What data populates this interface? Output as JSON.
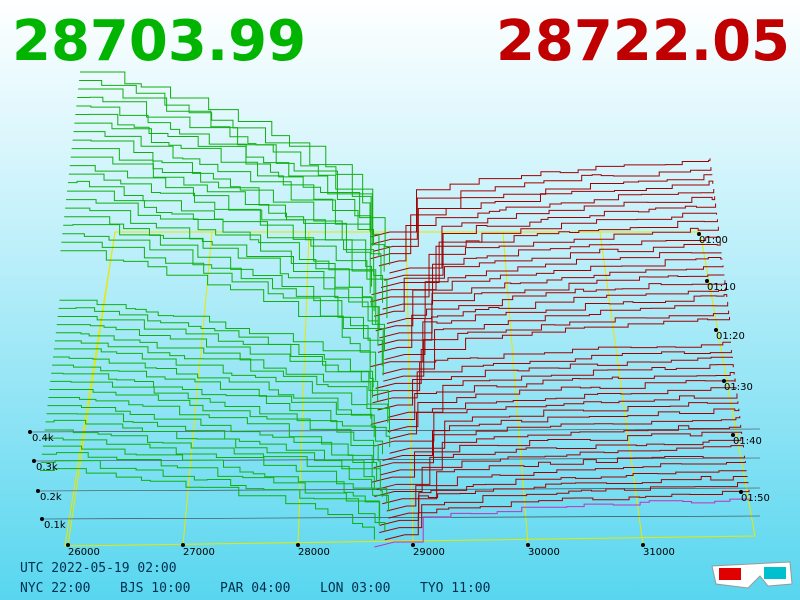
{
  "bid_price": "28703.99",
  "ask_price": "28722.05",
  "price_axis": [
    "26000",
    "27000",
    "28000",
    "29000",
    "30000",
    "31000"
  ],
  "time_axis": [
    "01:00",
    "01:10",
    "01:20",
    "01:30",
    "01:40",
    "01:50"
  ],
  "depth_axis": [
    "0.4k",
    "0.3k",
    "0.2k",
    "0.1k"
  ],
  "clock": {
    "utc": "UTC 2022-05-19 02:00",
    "cities": [
      "NYC 22:00",
      "BJS 10:00",
      "PAR 04:00",
      "LON 03:00",
      "TYO 11:00"
    ]
  }
}
